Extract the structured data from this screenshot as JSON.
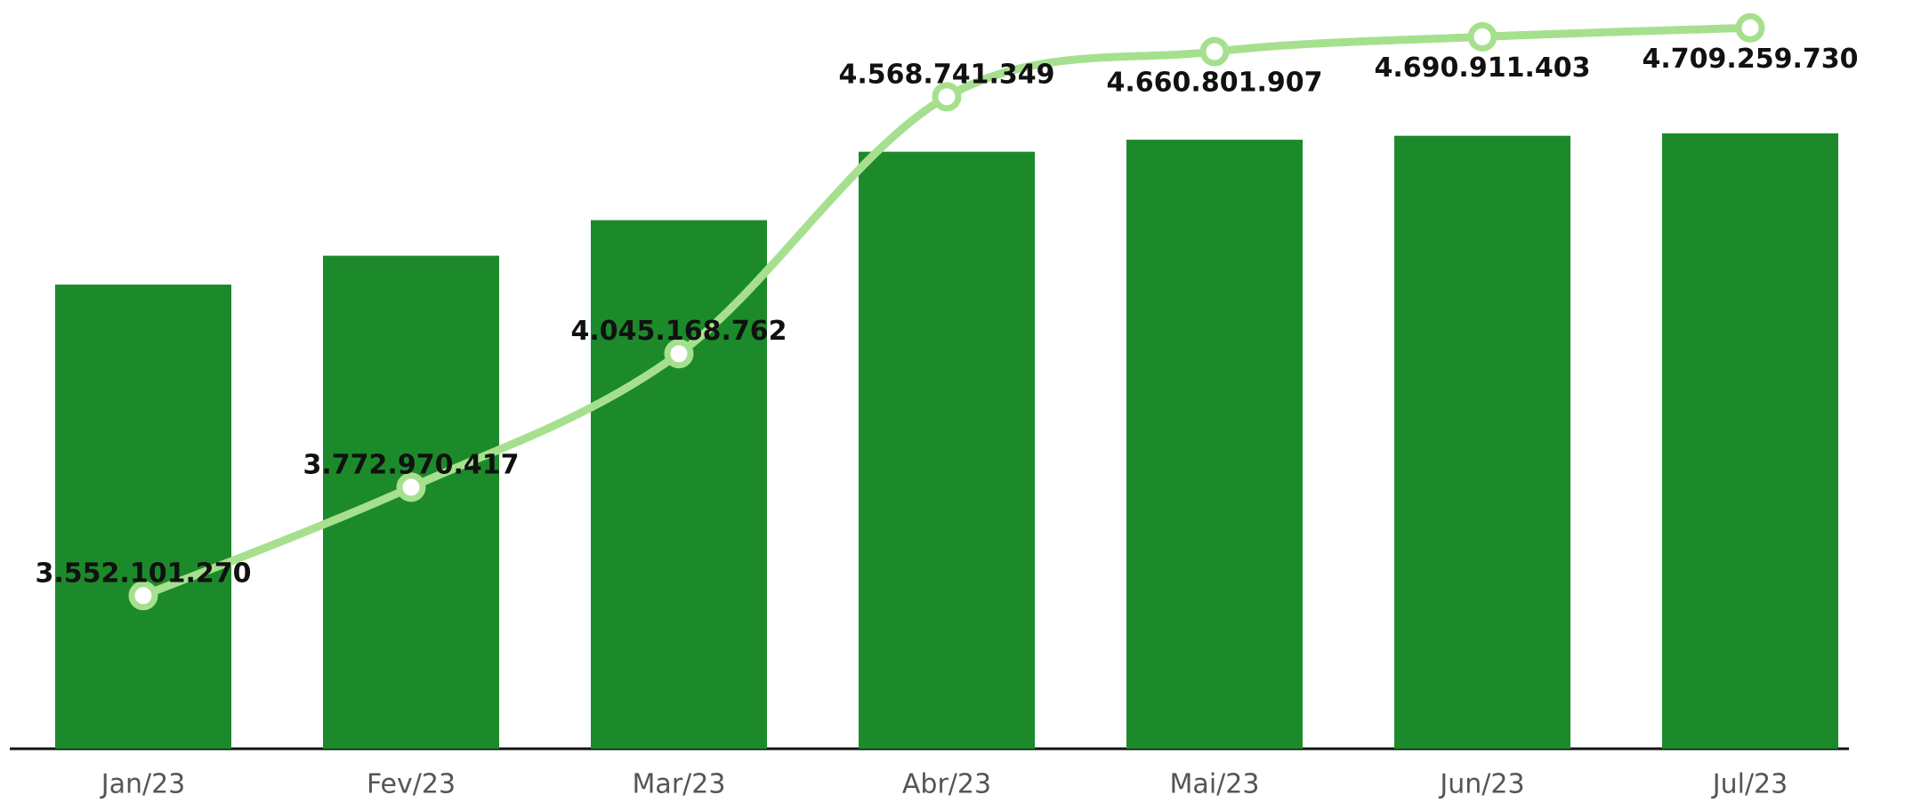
{
  "chart_data": {
    "type": "bar",
    "categories": [
      "Jan/23",
      "Fev/23",
      "Mar/23",
      "Abr/23",
      "Mai/23",
      "Jun/23",
      "Jul/23"
    ],
    "series": [
      {
        "type": "bar",
        "color": "#1c8a2a",
        "values": [
          3552101270,
          3772970417,
          4045168762,
          4568741349,
          4660801907,
          4690911403,
          4709259730
        ]
      },
      {
        "type": "line",
        "axis": "y2",
        "color": "#a6e08e",
        "values": [
          3552101270,
          3772970417,
          4045168762,
          4568741349,
          4660801907,
          4690911403,
          4709259730
        ],
        "value_labels": [
          "3.552.101.270",
          "3.772.970.417",
          "4.045.168.762",
          "4.568.741.349",
          "4.660.801.907",
          "4.690.911.403",
          "4.709.259.730"
        ]
      }
    ],
    "ylim": [
      0,
      5730000000
    ],
    "y2lim": [
      3240000000,
      4766000000
    ],
    "grid": false
  }
}
